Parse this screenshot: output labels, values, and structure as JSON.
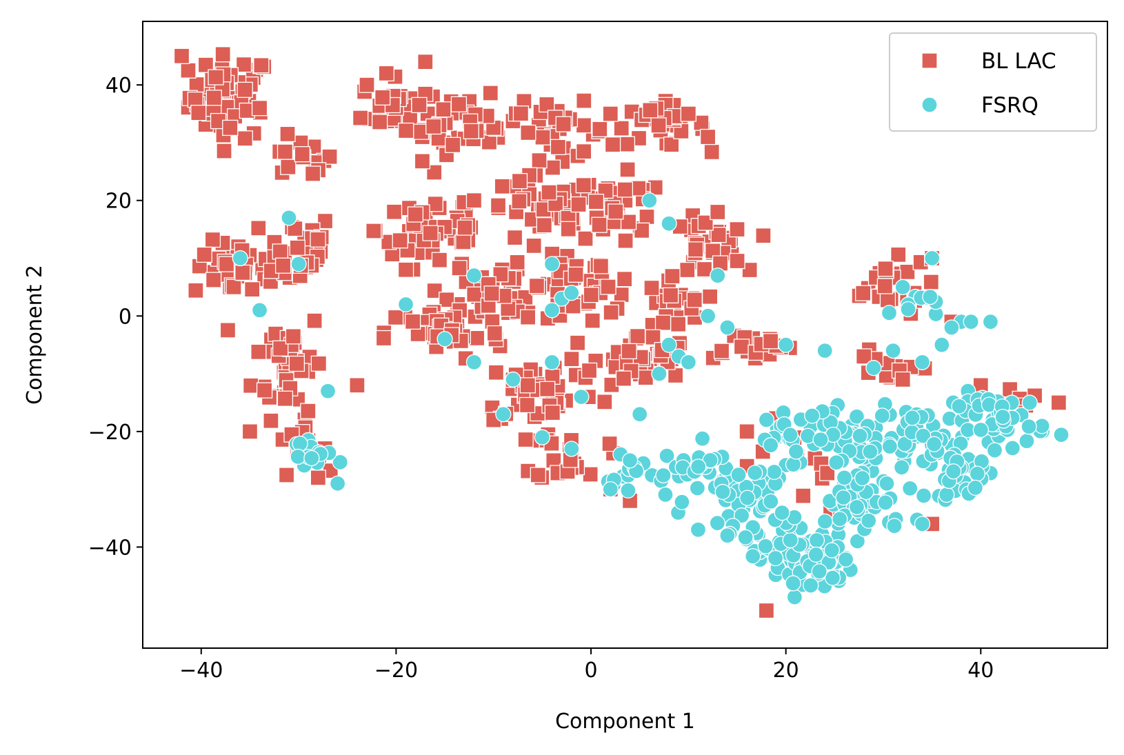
{
  "chart_data": {
    "type": "scatter",
    "xlabel": "Component 1",
    "ylabel": "Component 2",
    "xlim": [
      -46,
      53
    ],
    "ylim": [
      -57.5,
      51
    ],
    "xticks": [
      -40,
      -20,
      0,
      20,
      40
    ],
    "yticks": [
      -40,
      -20,
      0,
      20,
      40
    ],
    "xtick_labels": [
      "−40",
      "−20",
      "0",
      "20",
      "40"
    ],
    "ytick_labels": [
      "−40",
      "−20",
      "0",
      "20",
      "40"
    ],
    "grid": false,
    "legend_position": "top-right",
    "series": [
      {
        "name": "BL LAC",
        "marker": "square",
        "color": "#dd5e54",
        "clusters": [
          {
            "center": [
              -37,
              38
            ],
            "spread": [
              3.5,
              6
            ],
            "n": 60
          },
          {
            "center": [
              -30,
              27
            ],
            "spread": [
              3,
              3
            ],
            "n": 15
          },
          {
            "center": [
              -36,
              8
            ],
            "spread": [
              4,
              4
            ],
            "n": 40
          },
          {
            "center": [
              -30,
              12
            ],
            "spread": [
              3,
              5
            ],
            "n": 30
          },
          {
            "center": [
              -31,
              -8
            ],
            "spread": [
              3,
              8
            ],
            "n": 40
          },
          {
            "center": [
              -30,
              -22
            ],
            "spread": [
              2,
              4
            ],
            "n": 15
          },
          {
            "center": [
              -20,
              36
            ],
            "spread": [
              3,
              4
            ],
            "n": 30
          },
          {
            "center": [
              -13,
              33
            ],
            "spread": [
              5,
              4
            ],
            "n": 40
          },
          {
            "center": [
              -3,
              32
            ],
            "spread": [
              4,
              4
            ],
            "n": 30
          },
          {
            "center": [
              7,
              33
            ],
            "spread": [
              4,
              3
            ],
            "n": 30
          },
          {
            "center": [
              -16,
              15
            ],
            "spread": [
              5,
              6
            ],
            "n": 50
          },
          {
            "center": [
              -5,
              18
            ],
            "spread": [
              5,
              5
            ],
            "n": 40
          },
          {
            "center": [
              3,
              18
            ],
            "spread": [
              4,
              5
            ],
            "n": 30
          },
          {
            "center": [
              -8,
              5
            ],
            "spread": [
              6,
              5
            ],
            "n": 50
          },
          {
            "center": [
              0,
              5
            ],
            "spread": [
              4,
              4
            ],
            "n": 30
          },
          {
            "center": [
              12,
              12
            ],
            "spread": [
              3,
              4
            ],
            "n": 30
          },
          {
            "center": [
              8,
              2
            ],
            "spread": [
              3,
              5
            ],
            "n": 25
          },
          {
            "center": [
              -15,
              -3
            ],
            "spread": [
              5,
              4
            ],
            "n": 40
          },
          {
            "center": [
              -5,
              -13
            ],
            "spread": [
              5,
              5
            ],
            "n": 40
          },
          {
            "center": [
              5,
              -8
            ],
            "spread": [
              4,
              4
            ],
            "n": 35
          },
          {
            "center": [
              -2,
              -24
            ],
            "spread": [
              3,
              4
            ],
            "n": 20
          },
          {
            "center": [
              16,
              -5
            ],
            "spread": [
              4,
              2
            ],
            "n": 20
          },
          {
            "center": [
              30,
              5
            ],
            "spread": [
              4,
              4
            ],
            "n": 25
          },
          {
            "center": [
              30,
              -10
            ],
            "spread": [
              3,
              4
            ],
            "n": 10
          },
          {
            "center": [
              22,
              -25
            ],
            "spread": [
              4,
              8
            ],
            "n": 15
          },
          {
            "center": [
              45,
              -15
            ],
            "spread": [
              2,
              2
            ],
            "n": 6
          }
        ],
        "points": [
          [
            -42,
            45
          ],
          [
            -23,
            40
          ],
          [
            -17,
            44
          ],
          [
            -21,
            42
          ],
          [
            -34,
            36
          ],
          [
            2,
            35
          ],
          [
            12,
            31
          ],
          [
            13,
            18
          ],
          [
            15,
            15
          ],
          [
            35,
            10
          ],
          [
            37,
            -1
          ],
          [
            40,
            -12
          ],
          [
            48,
            -15
          ],
          [
            35,
            -36
          ],
          [
            24,
            -40
          ],
          [
            18,
            -51
          ],
          [
            21,
            -43
          ],
          [
            16,
            -20
          ],
          [
            28,
            -7
          ],
          [
            32,
            -11
          ],
          [
            16,
            -26
          ],
          [
            4,
            -32
          ],
          [
            -24,
            -12
          ],
          [
            -35,
            -20
          ],
          [
            -28,
            -28
          ],
          [
            -10,
            -18
          ],
          [
            2,
            -30
          ],
          [
            -12,
            20
          ],
          [
            -19,
            8
          ],
          [
            10,
            35
          ]
        ]
      },
      {
        "name": "FSRQ",
        "marker": "circle",
        "color": "#5cd4dc",
        "clusters": [
          {
            "center": [
              22,
              -42
            ],
            "spread": [
              4,
              5
            ],
            "n": 80
          },
          {
            "center": [
              28,
              -33
            ],
            "spread": [
              4,
              4
            ],
            "n": 40
          },
          {
            "center": [
              17,
              -32
            ],
            "spread": [
              3,
              5
            ],
            "n": 40
          },
          {
            "center": [
              27,
              -22
            ],
            "spread": [
              4,
              5
            ],
            "n": 50
          },
          {
            "center": [
              34,
              -22
            ],
            "spread": [
              4,
              5
            ],
            "n": 40
          },
          {
            "center": [
              42,
              -18
            ],
            "spread": [
              4,
              4
            ],
            "n": 50
          },
          {
            "center": [
              38,
              -28
            ],
            "spread": [
              3,
              3
            ],
            "n": 25
          },
          {
            "center": [
              12,
              -27
            ],
            "spread": [
              4,
              4
            ],
            "n": 30
          },
          {
            "center": [
              21,
              -20
            ],
            "spread": [
              4,
              4
            ],
            "n": 30
          },
          {
            "center": [
              33,
              2
            ],
            "spread": [
              2,
              2
            ],
            "n": 10
          },
          {
            "center": [
              5,
              -28
            ],
            "spread": [
              3,
              3
            ],
            "n": 15
          },
          {
            "center": [
              -29,
              -24
            ],
            "spread": [
              2,
              3
            ],
            "n": 15
          }
        ],
        "points": [
          [
            -31,
            17
          ],
          [
            -36,
            10
          ],
          [
            -34,
            1
          ],
          [
            -30,
            9
          ],
          [
            -12,
            7
          ],
          [
            -19,
            2
          ],
          [
            -4,
            9
          ],
          [
            -3,
            3
          ],
          [
            -4,
            1
          ],
          [
            -2,
            4
          ],
          [
            -15,
            -4
          ],
          [
            -12,
            -8
          ],
          [
            -4,
            -8
          ],
          [
            -8,
            -11
          ],
          [
            -9,
            -17
          ],
          [
            -5,
            -21
          ],
          [
            -2,
            -23
          ],
          [
            8,
            16
          ],
          [
            6,
            20
          ],
          [
            13,
            7
          ],
          [
            14,
            -2
          ],
          [
            12,
            0
          ],
          [
            9,
            -7
          ],
          [
            10,
            -8
          ],
          [
            7,
            -10
          ],
          [
            5,
            -17
          ],
          [
            4,
            -25
          ],
          [
            2,
            -30
          ],
          [
            20,
            -5
          ],
          [
            24,
            -6
          ],
          [
            29,
            -9
          ],
          [
            31,
            -6
          ],
          [
            34,
            -8
          ],
          [
            38,
            -1
          ],
          [
            39,
            -1
          ],
          [
            41,
            -1
          ],
          [
            35,
            10
          ],
          [
            37,
            -2
          ],
          [
            36,
            -5
          ],
          [
            32,
            5
          ],
          [
            34,
            -36
          ],
          [
            11,
            -37
          ],
          [
            14,
            -38
          ],
          [
            -26,
            -29
          ],
          [
            -27,
            -13
          ],
          [
            -1,
            -14
          ],
          [
            8,
            -5
          ],
          [
            26,
            -28
          ]
        ]
      }
    ]
  }
}
